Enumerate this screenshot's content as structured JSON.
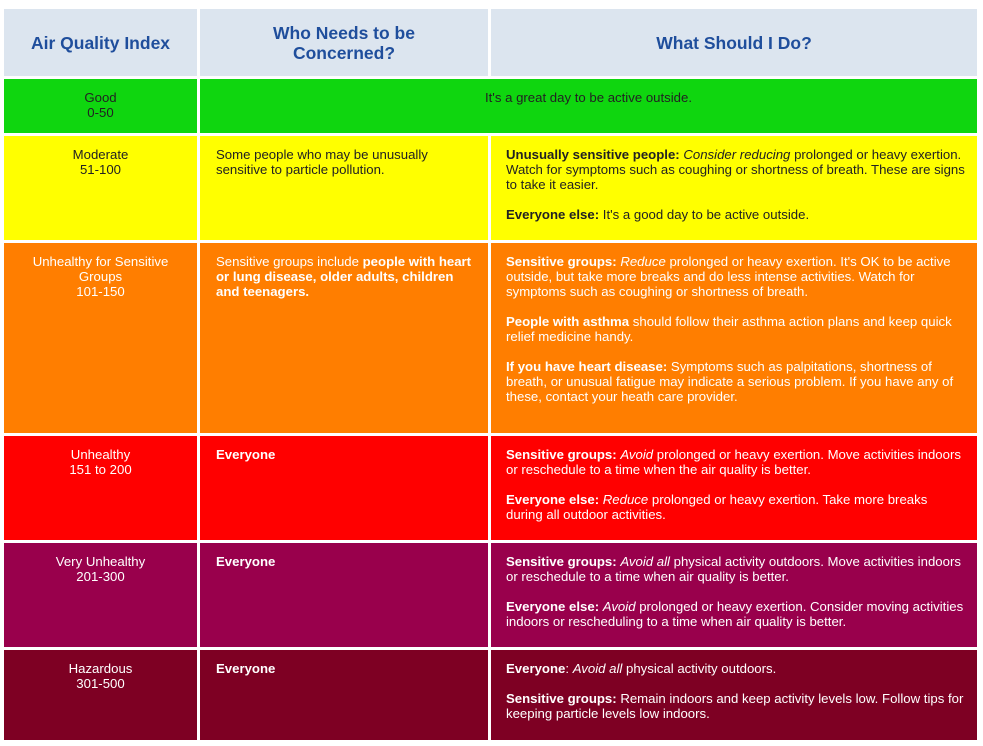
{
  "header": {
    "col1": "Air Quality Index",
    "col2_line1": "Who Needs to be",
    "col2_line2": "Concerned?",
    "col3": "What Should I Do?"
  },
  "rows": [
    {
      "level": "Good",
      "range": "0-50",
      "color": "#0fd60f",
      "who": "",
      "advice_text": "It's a great day to be active outside."
    },
    {
      "level": "Moderate",
      "range": "51-100",
      "color": "#ffff00",
      "who_line1": "Some people who may be unusually",
      "who_line2": "sensitive to particle pollution.",
      "adv1_b": "Unusually sensitive people:",
      "adv1_i": "Consider reducing",
      "adv1_t": "prolonged or heavy exertion. Watch for symptoms such as coughing or shortness of breath. These are signs to take it easier.",
      "adv2_b": "Everyone else:",
      "adv2_t": "It's a good day to be active outside."
    },
    {
      "level_line1": "Unhealthy for Sensitive",
      "level_line2": "Groups",
      "range": "101-150",
      "color": "#ff7e00",
      "who_t": "Sensitive groups include",
      "who_b": "people with heart or lung disease, older adults, children and teenagers.",
      "adv1_b": "Sensitive groups:",
      "adv1_i": "Reduce",
      "adv1_t": "prolonged or heavy exertion. It's OK to be active outside, but take more breaks and do less intense activities. Watch for symptoms such as coughing or shortness of breath.",
      "adv2_b": "People with asthma",
      "adv2_t": "should follow their asthma action plans and keep quick relief medicine handy.",
      "adv3_b": "If you have heart disease:",
      "adv3_t": "Symptoms such as palpitations, shortness of breath, or unusual fatigue may indicate a serious problem. If you have any of these, contact your heath care provider."
    },
    {
      "level": "Unhealthy",
      "range": "151 to 200",
      "color": "#ff0000",
      "who": "Everyone",
      "adv1_b": "Sensitive groups:",
      "adv1_i": "Avoid",
      "adv1_t": "prolonged or heavy exertion. Move activities indoors or reschedule to a time when the air quality is better.",
      "adv2_b": "Everyone else:",
      "adv2_i": "Reduce",
      "adv2_t": "prolonged or heavy exertion. Take more breaks during all outdoor activities."
    },
    {
      "level": "Very Unhealthy",
      "range": "201-300",
      "color": "#99004c",
      "who": "Everyone",
      "adv1_b": "Sensitive groups:",
      "adv1_i": "Avoid all",
      "adv1_t": "physical activity outdoors. Move activities indoors or reschedule to a time when air quality is better.",
      "adv2_b": "Everyone else:",
      "adv2_i": "Avoid",
      "adv2_t": "prolonged or heavy exertion. Consider moving activities indoors or rescheduling to a time when air quality is better."
    },
    {
      "level": "Hazardous",
      "range": "301-500",
      "color": "#7e0023",
      "who": "Everyone",
      "adv1_b": "Everyone",
      "adv1_colon": ":",
      "adv1_i": "Avoid all",
      "adv1_t": "physical activity outdoors.",
      "adv2_b": "Sensitive groups:",
      "adv2_t": "Remain indoors and keep activity levels low. Follow tips for keeping particle levels low indoors."
    }
  ]
}
